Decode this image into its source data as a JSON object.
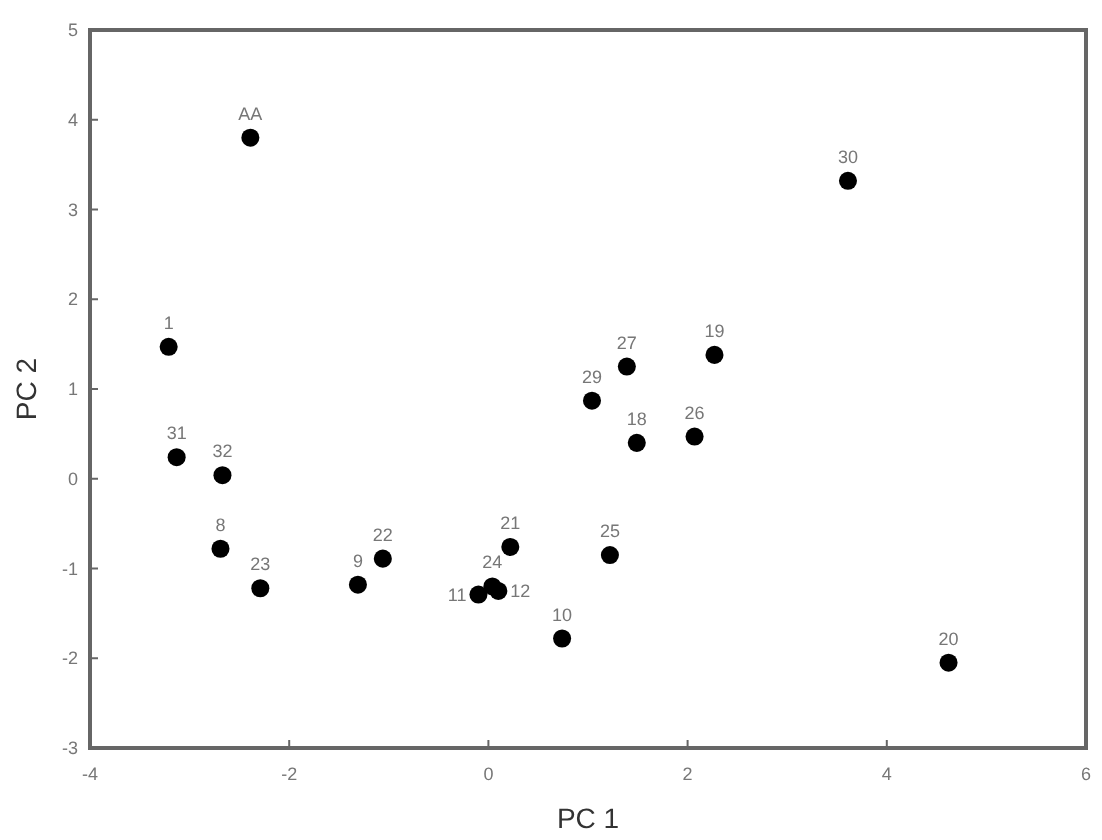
{
  "chart_data": {
    "type": "scatter",
    "xlabel": "PC 1",
    "ylabel": "PC 2",
    "x": [
      -2.39,
      -3.21,
      -3.13,
      -2.67,
      -2.69,
      -2.29,
      -1.31,
      -1.06,
      0.22,
      0.04,
      -0.1,
      0.1,
      0.74,
      1.22,
      1.04,
      1.39,
      1.49,
      2.07,
      2.27,
      3.61,
      4.62
    ],
    "series": [
      {
        "color": "#000000",
        "values": [
          3.8,
          1.47,
          0.24,
          0.04,
          -0.78,
          -1.22,
          -1.18,
          -0.89,
          -0.76,
          -1.2,
          -1.29,
          -1.25,
          -1.78,
          -0.85,
          0.87,
          1.25,
          0.4,
          0.47,
          1.38,
          3.32,
          -2.05
        ]
      }
    ],
    "annotations": [
      {
        "text": "AA",
        "x": -2.39,
        "y": 3.8
      },
      {
        "text": "1",
        "x": -3.21,
        "y": 1.47
      },
      {
        "text": "31",
        "x": -3.13,
        "y": 0.24
      },
      {
        "text": "32",
        "x": -2.67,
        "y": 0.04
      },
      {
        "text": "8",
        "x": -2.69,
        "y": -0.78
      },
      {
        "text": "23",
        "x": -2.29,
        "y": -1.22
      },
      {
        "text": "9",
        "x": -1.31,
        "y": -1.18
      },
      {
        "text": "22",
        "x": -1.06,
        "y": -0.89
      },
      {
        "text": "21",
        "x": 0.22,
        "y": -0.76
      },
      {
        "text": "24",
        "x": 0.04,
        "y": -1.2
      },
      {
        "text": "11",
        "x": -0.1,
        "y": -1.29
      },
      {
        "text": "12",
        "x": 0.1,
        "y": -1.25
      },
      {
        "text": "10",
        "x": 0.74,
        "y": -1.78
      },
      {
        "text": "25",
        "x": 1.22,
        "y": -0.85
      },
      {
        "text": "29",
        "x": 1.04,
        "y": 0.87
      },
      {
        "text": "27",
        "x": 1.39,
        "y": 1.25
      },
      {
        "text": "18",
        "x": 1.49,
        "y": 0.4
      },
      {
        "text": "26",
        "x": 2.07,
        "y": 0.47
      },
      {
        "text": "19",
        "x": 2.27,
        "y": 1.38
      },
      {
        "text": "30",
        "x": 3.61,
        "y": 3.32
      },
      {
        "text": "20",
        "x": 4.62,
        "y": -2.05
      }
    ],
    "xlim": [
      -4,
      6
    ],
    "xticks": [
      -4,
      -2,
      0,
      2,
      4,
      6
    ],
    "ylim": [
      -3,
      5
    ],
    "yticks": [
      -3,
      -2,
      -1,
      0,
      1,
      2,
      3,
      4,
      5
    ],
    "marker": "circle",
    "grid": false
  }
}
